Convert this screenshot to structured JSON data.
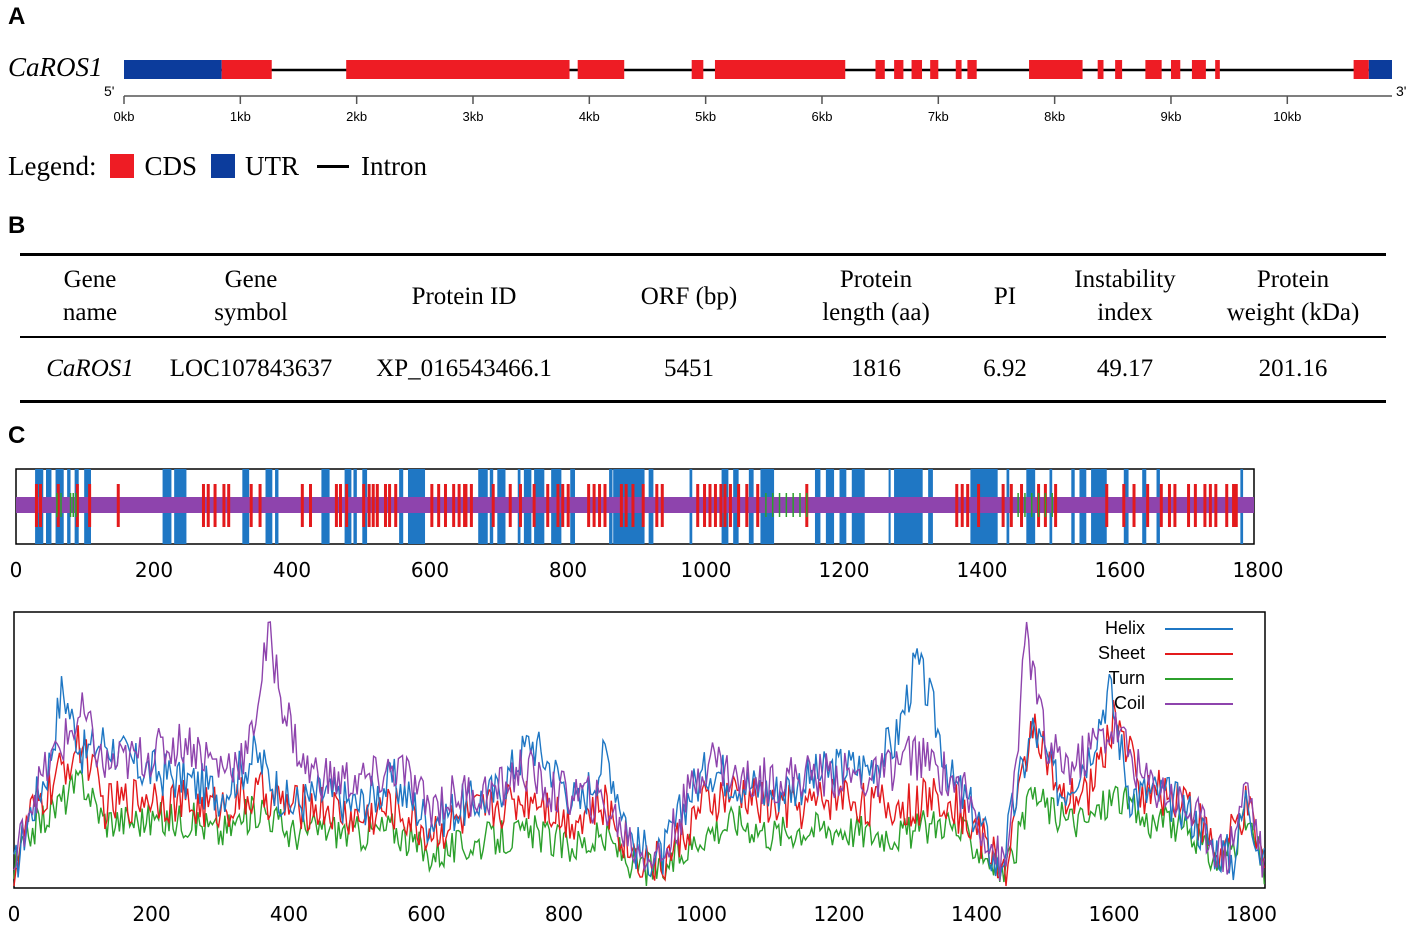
{
  "panelA": {
    "label": "A",
    "gene_label": "CaROS1",
    "five_prime": "5'",
    "three_prime": "3'",
    "kb_ticks": [
      "0kb",
      "1kb",
      "2kb",
      "3kb",
      "4kb",
      "5kb",
      "6kb",
      "7kb",
      "8kb",
      "9kb",
      "10kb"
    ],
    "gene_length_kb": 10.9,
    "utr": [
      [
        0,
        0.84
      ],
      [
        10.7,
        10.9
      ]
    ],
    "cds": [
      [
        0.84,
        1.27
      ],
      [
        1.91,
        3.83
      ],
      [
        3.9,
        4.3
      ],
      [
        4.88,
        4.98
      ],
      [
        5.08,
        6.2
      ],
      [
        6.46,
        6.54
      ],
      [
        6.62,
        6.7
      ],
      [
        6.77,
        6.86
      ],
      [
        6.93,
        7.0
      ],
      [
        7.15,
        7.2
      ],
      [
        7.25,
        7.33
      ],
      [
        7.78,
        8.24
      ],
      [
        8.37,
        8.42
      ],
      [
        8.52,
        8.58
      ],
      [
        8.78,
        8.92
      ],
      [
        9.0,
        9.08
      ],
      [
        9.18,
        9.3
      ],
      [
        9.38,
        9.42
      ],
      [
        10.57,
        10.7
      ]
    ],
    "legend": {
      "title": "Legend:",
      "cds": "CDS",
      "utr": "UTR",
      "intron": "Intron"
    },
    "colors": {
      "cds": "#ee1c24",
      "utr": "#0c3c9c",
      "intron": "#000000"
    }
  },
  "panelB": {
    "label": "B",
    "headers": [
      [
        "Gene",
        "name"
      ],
      [
        "Gene",
        "symbol"
      ],
      [
        "Protein ID",
        ""
      ],
      [
        "ORF (bp)",
        ""
      ],
      [
        "Protein",
        "length (aa)"
      ],
      [
        "PI",
        ""
      ],
      [
        "Instability",
        "index"
      ],
      [
        "Protein",
        "weight (kDa)"
      ]
    ],
    "row": [
      "CaROS1",
      "LOC107843637",
      "XP_016543466.1",
      "5451",
      "1816",
      "6.92",
      "49.17",
      "201.16"
    ]
  },
  "panelC": {
    "label": "C",
    "axis_ticks": [
      "0",
      "200",
      "400",
      "600",
      "800",
      "1000",
      "1200",
      "1400",
      "1600",
      "1800"
    ],
    "protein_length_aa": 1816,
    "colors": {
      "helix": "#1f77c4",
      "sheet": "#e31a1c",
      "turn": "#2ca02c",
      "coil": "#8e44ad"
    },
    "helix_blocks": [
      [
        28,
        40
      ],
      [
        44,
        52
      ],
      [
        58,
        70
      ],
      [
        75,
        80
      ],
      [
        86,
        92
      ],
      [
        100,
        110
      ],
      [
        215,
        228
      ],
      [
        232,
        250
      ],
      [
        332,
        342
      ],
      [
        366,
        376
      ],
      [
        380,
        385
      ],
      [
        448,
        460
      ],
      [
        482,
        492
      ],
      [
        495,
        500
      ],
      [
        508,
        515
      ],
      [
        562,
        568
      ],
      [
        575,
        600
      ],
      [
        678,
        692
      ],
      [
        695,
        700
      ],
      [
        706,
        718
      ],
      [
        736,
        740
      ],
      [
        745,
        756
      ],
      [
        760,
        775
      ],
      [
        785,
        800
      ],
      [
        813,
        820
      ],
      [
        870,
        875
      ],
      [
        876,
        922
      ],
      [
        928,
        935
      ],
      [
        988,
        992
      ],
      [
        1035,
        1045
      ],
      [
        1052,
        1060
      ],
      [
        1075,
        1082
      ],
      [
        1092,
        1112
      ],
      [
        1172,
        1180
      ],
      [
        1188,
        1200
      ],
      [
        1208,
        1218
      ],
      [
        1226,
        1245
      ],
      [
        1280,
        1283
      ],
      [
        1288,
        1330
      ],
      [
        1338,
        1345
      ],
      [
        1400,
        1440
      ],
      [
        1453,
        1457
      ],
      [
        1482,
        1495
      ],
      [
        1516,
        1520
      ],
      [
        1548,
        1553
      ],
      [
        1560,
        1570
      ],
      [
        1577,
        1600
      ],
      [
        1625,
        1632
      ],
      [
        1652,
        1658
      ],
      [
        1673,
        1678
      ],
      [
        1796,
        1800
      ]
    ],
    "sheet_marks": [
      30,
      36,
      62,
      90,
      108,
      150,
      275,
      282,
      292,
      305,
      312,
      345,
      358,
      420,
      432,
      470,
      476,
      485,
      510,
      518,
      524,
      530,
      542,
      548,
      557,
      610,
      620,
      630,
      642,
      650,
      658,
      660,
      668,
      700,
      725,
      740,
      760,
      780,
      795,
      802,
      810,
      840,
      848,
      856,
      864,
      888,
      895,
      905,
      920,
      940,
      948,
      1000,
      1010,
      1018,
      1026,
      1034,
      1040,
      1048,
      1060,
      1072,
      1088,
      1160,
      1380,
      1388,
      1396,
      1412,
      1448,
      1460,
      1475,
      1500,
      1510,
      1525,
      1600,
      1625,
      1640,
      1660,
      1680,
      1692,
      1700,
      1720,
      1730,
      1744,
      1752,
      1760,
      1776,
      1786,
      1790
    ],
    "turn_marks": [
      60,
      66,
      80,
      84,
      88,
      1100,
      1110,
      1120,
      1130,
      1140,
      1150,
      1160,
      1470,
      1480,
      1490,
      1500,
      1510,
      1520
    ],
    "legend": {
      "helix": "Helix",
      "sheet": "Sheet",
      "turn": "Turn",
      "coil": "Coil"
    }
  },
  "chart_data": {
    "type": "line",
    "title": "",
    "xlabel": "",
    "ylabel": "",
    "xlim": [
      0,
      1816
    ],
    "x_ticks": [
      0,
      200,
      400,
      600,
      800,
      1000,
      1200,
      1400,
      1600,
      1800
    ],
    "ylim": [
      0,
      1
    ],
    "series": [
      {
        "name": "Helix",
        "key_points": [
          [
            0,
            0.05
          ],
          [
            20,
            0.25
          ],
          [
            50,
            0.45
          ],
          [
            70,
            0.75
          ],
          [
            100,
            0.5
          ],
          [
            130,
            0.55
          ],
          [
            180,
            0.45
          ],
          [
            250,
            0.4
          ],
          [
            300,
            0.35
          ],
          [
            350,
            0.5
          ],
          [
            400,
            0.3
          ],
          [
            450,
            0.35
          ],
          [
            500,
            0.3
          ],
          [
            550,
            0.4
          ],
          [
            600,
            0.25
          ],
          [
            650,
            0.3
          ],
          [
            700,
            0.35
          ],
          [
            750,
            0.55
          ],
          [
            780,
            0.45
          ],
          [
            820,
            0.3
          ],
          [
            860,
            0.5
          ],
          [
            900,
            0.15
          ],
          [
            940,
            0.1
          ],
          [
            980,
            0.35
          ],
          [
            1010,
            0.45
          ],
          [
            1050,
            0.4
          ],
          [
            1100,
            0.35
          ],
          [
            1150,
            0.4
          ],
          [
            1200,
            0.45
          ],
          [
            1240,
            0.45
          ],
          [
            1280,
            0.55
          ],
          [
            1310,
            0.85
          ],
          [
            1330,
            0.7
          ],
          [
            1360,
            0.4
          ],
          [
            1400,
            0.25
          ],
          [
            1430,
            0.05
          ],
          [
            1460,
            0.4
          ],
          [
            1480,
            0.6
          ],
          [
            1520,
            0.35
          ],
          [
            1560,
            0.5
          ],
          [
            1590,
            0.75
          ],
          [
            1620,
            0.35
          ],
          [
            1660,
            0.35
          ],
          [
            1700,
            0.3
          ],
          [
            1740,
            0.15
          ],
          [
            1770,
            0.1
          ],
          [
            1790,
            0.35
          ],
          [
            1816,
            0.05
          ]
        ]
      },
      {
        "name": "Sheet",
        "key_points": [
          [
            0,
            0.05
          ],
          [
            20,
            0.25
          ],
          [
            60,
            0.4
          ],
          [
            100,
            0.55
          ],
          [
            130,
            0.3
          ],
          [
            200,
            0.35
          ],
          [
            260,
            0.3
          ],
          [
            300,
            0.3
          ],
          [
            360,
            0.35
          ],
          [
            400,
            0.3
          ],
          [
            450,
            0.3
          ],
          [
            500,
            0.25
          ],
          [
            550,
            0.3
          ],
          [
            600,
            0.2
          ],
          [
            650,
            0.25
          ],
          [
            700,
            0.3
          ],
          [
            760,
            0.35
          ],
          [
            800,
            0.25
          ],
          [
            860,
            0.3
          ],
          [
            900,
            0.12
          ],
          [
            940,
            0.08
          ],
          [
            1000,
            0.3
          ],
          [
            1050,
            0.35
          ],
          [
            1100,
            0.3
          ],
          [
            1150,
            0.3
          ],
          [
            1200,
            0.35
          ],
          [
            1250,
            0.3
          ],
          [
            1300,
            0.3
          ],
          [
            1350,
            0.35
          ],
          [
            1400,
            0.2
          ],
          [
            1440,
            0.05
          ],
          [
            1480,
            0.65
          ],
          [
            1520,
            0.3
          ],
          [
            1560,
            0.35
          ],
          [
            1600,
            0.65
          ],
          [
            1640,
            0.35
          ],
          [
            1700,
            0.35
          ],
          [
            1750,
            0.1
          ],
          [
            1790,
            0.3
          ],
          [
            1816,
            0.05
          ]
        ]
      },
      {
        "name": "Turn",
        "key_points": [
          [
            0,
            0.05
          ],
          [
            20,
            0.2
          ],
          [
            60,
            0.3
          ],
          [
            100,
            0.4
          ],
          [
            130,
            0.25
          ],
          [
            200,
            0.25
          ],
          [
            260,
            0.25
          ],
          [
            300,
            0.2
          ],
          [
            360,
            0.3
          ],
          [
            400,
            0.2
          ],
          [
            450,
            0.22
          ],
          [
            500,
            0.2
          ],
          [
            550,
            0.22
          ],
          [
            600,
            0.12
          ],
          [
            650,
            0.15
          ],
          [
            700,
            0.18
          ],
          [
            760,
            0.2
          ],
          [
            800,
            0.15
          ],
          [
            860,
            0.18
          ],
          [
            900,
            0.08
          ],
          [
            940,
            0.05
          ],
          [
            1000,
            0.2
          ],
          [
            1050,
            0.25
          ],
          [
            1100,
            0.2
          ],
          [
            1150,
            0.22
          ],
          [
            1200,
            0.22
          ],
          [
            1250,
            0.2
          ],
          [
            1300,
            0.2
          ],
          [
            1350,
            0.25
          ],
          [
            1400,
            0.15
          ],
          [
            1440,
            0.04
          ],
          [
            1480,
            0.35
          ],
          [
            1520,
            0.25
          ],
          [
            1560,
            0.25
          ],
          [
            1600,
            0.35
          ],
          [
            1640,
            0.25
          ],
          [
            1700,
            0.22
          ],
          [
            1750,
            0.08
          ],
          [
            1790,
            0.25
          ],
          [
            1816,
            0.05
          ]
        ]
      },
      {
        "name": "Coil",
        "key_points": [
          [
            0,
            0.05
          ],
          [
            20,
            0.3
          ],
          [
            60,
            0.5
          ],
          [
            100,
            0.65
          ],
          [
            130,
            0.45
          ],
          [
            200,
            0.5
          ],
          [
            250,
            0.55
          ],
          [
            300,
            0.45
          ],
          [
            340,
            0.5
          ],
          [
            370,
            0.95
          ],
          [
            390,
            0.7
          ],
          [
            420,
            0.45
          ],
          [
            460,
            0.4
          ],
          [
            520,
            0.4
          ],
          [
            560,
            0.45
          ],
          [
            600,
            0.3
          ],
          [
            650,
            0.35
          ],
          [
            700,
            0.35
          ],
          [
            740,
            0.45
          ],
          [
            780,
            0.35
          ],
          [
            820,
            0.35
          ],
          [
            860,
            0.3
          ],
          [
            900,
            0.15
          ],
          [
            940,
            0.1
          ],
          [
            980,
            0.35
          ],
          [
            1010,
            0.5
          ],
          [
            1050,
            0.4
          ],
          [
            1100,
            0.4
          ],
          [
            1150,
            0.42
          ],
          [
            1200,
            0.42
          ],
          [
            1250,
            0.4
          ],
          [
            1300,
            0.5
          ],
          [
            1340,
            0.45
          ],
          [
            1380,
            0.35
          ],
          [
            1420,
            0.15
          ],
          [
            1440,
            0.05
          ],
          [
            1470,
            0.95
          ],
          [
            1500,
            0.5
          ],
          [
            1540,
            0.45
          ],
          [
            1570,
            0.55
          ],
          [
            1600,
            0.6
          ],
          [
            1640,
            0.4
          ],
          [
            1680,
            0.35
          ],
          [
            1720,
            0.25
          ],
          [
            1760,
            0.1
          ],
          [
            1790,
            0.4
          ],
          [
            1816,
            0.05
          ]
        ]
      }
    ]
  }
}
